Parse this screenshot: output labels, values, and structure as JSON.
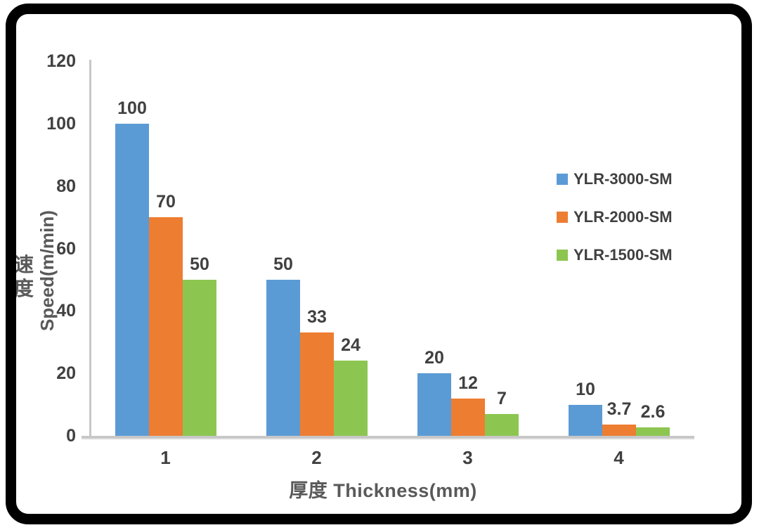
{
  "colors": {
    "frame": "#000000",
    "axis": "#C8C8C8",
    "label_text": "#404040",
    "axis_title_text": "#595959",
    "background": "#FFFFFF"
  },
  "chart_data": {
    "type": "bar",
    "title": "",
    "categories": [
      "1",
      "2",
      "3",
      "4"
    ],
    "series": [
      {
        "name": "YLR-3000-SM",
        "color": "#5B9BD5",
        "values": [
          100,
          50,
          20,
          10
        ]
      },
      {
        "name": "YLR-2000-SM",
        "color": "#ED7D31",
        "values": [
          70,
          33,
          12,
          3.7
        ]
      },
      {
        "name": "YLR-1500-SM",
        "color": "#8CC650",
        "values": [
          50,
          24,
          7,
          2.6
        ]
      }
    ],
    "data_labels": [
      [
        "100",
        "50",
        "20",
        "10"
      ],
      [
        "70",
        "33",
        "12",
        "3.7"
      ],
      [
        "50",
        "24",
        "7",
        "2.6"
      ]
    ],
    "xlabel": "厚度 Thickness(mm)",
    "ylabel_cn": "速度",
    "ylabel_en": "Speed(m/min)",
    "ylim": [
      0,
      120
    ],
    "ytick_step": 20,
    "yticks": [
      0,
      20,
      40,
      60,
      80,
      100,
      120
    ],
    "grid": "off",
    "legend_position": "right"
  }
}
